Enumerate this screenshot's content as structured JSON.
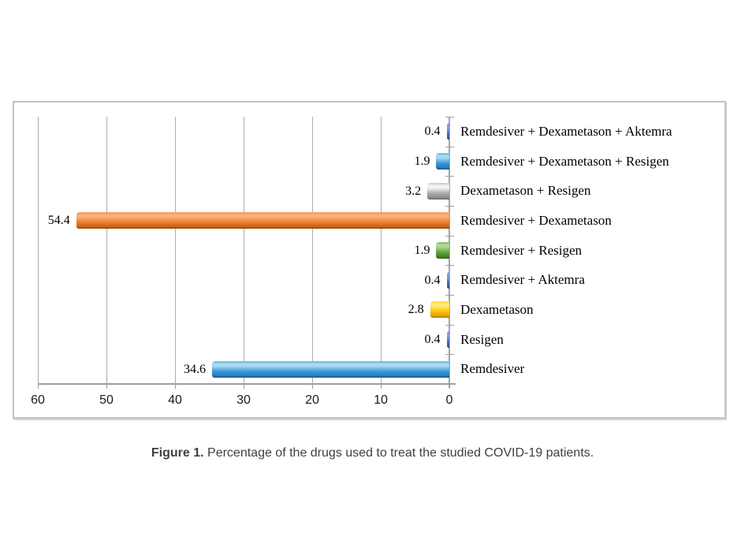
{
  "caption": {
    "label": "Figure 1.",
    "text": " Percentage of the drugs used to treat the studied COVID-19 patients."
  },
  "chart_data": {
    "type": "bar",
    "orientation": "horizontal",
    "axis_reversed": true,
    "title": "",
    "xlabel": "",
    "ylabel": "",
    "xlim": [
      0,
      60
    ],
    "x_ticks": [
      "60",
      "50",
      "40",
      "30",
      "20",
      "10",
      "0"
    ],
    "grid": true,
    "legend": "none",
    "categories": [
      "Remdesiver + Dexametason + Aktemra",
      "Remdesiver + Dexametason + Resigen",
      "Dexametason + Resigen",
      "Remdesiver + Dexametason",
      "Remdesiver + Resigen",
      "Remdesiver + Aktemra",
      "Dexametason",
      "Resigen",
      "Remdesiver"
    ],
    "values": [
      0.4,
      1.9,
      3.2,
      54.4,
      1.9,
      0.4,
      2.8,
      0.4,
      34.6
    ],
    "data_labels": [
      "0.4",
      "1.9",
      "3.2",
      "54.4",
      "1.9",
      "0.4",
      "2.8",
      "0.4",
      "34.6"
    ],
    "bar_colors": [
      {
        "name": "royal-blue",
        "light": "#7fa3e0",
        "base": "#4472c4",
        "dark": "#2f5496"
      },
      {
        "name": "sky-blue",
        "light": "#a8d8f4",
        "base": "#3e98d5",
        "dark": "#1a6fae"
      },
      {
        "name": "silver",
        "light": "#f4f4f4",
        "base": "#acacac",
        "dark": "#7f7f7f"
      },
      {
        "name": "orange",
        "light": "#f8b176",
        "base": "#ed7d31",
        "dark": "#b25708"
      },
      {
        "name": "green",
        "light": "#afd89b",
        "base": "#5fa53b",
        "dark": "#36711b"
      },
      {
        "name": "royal-blue",
        "light": "#7fa3e0",
        "base": "#4472c4",
        "dark": "#2f5496"
      },
      {
        "name": "gold",
        "light": "#ffe97a",
        "base": "#fec500",
        "dark": "#c39400"
      },
      {
        "name": "royal-blue",
        "light": "#7fa3e0",
        "base": "#4472c4",
        "dark": "#2f5496"
      },
      {
        "name": "sky-blue",
        "light": "#a8d8f4",
        "base": "#3e98d5",
        "dark": "#1a6fae"
      }
    ]
  },
  "style_colors": {
    "grid": "#ababab",
    "axis": "#9e9e9e",
    "frame_border": "#c3c3c9",
    "caption_text": "#3f3f3f",
    "label_text": "#000000"
  }
}
